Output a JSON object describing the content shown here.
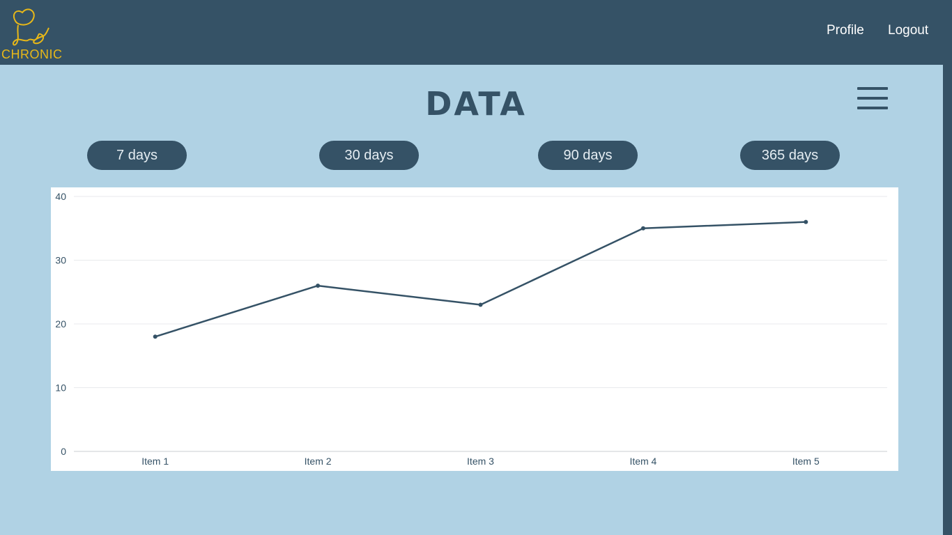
{
  "header": {
    "brand": "CHRONIC",
    "logo_icon": "elephant-line-icon",
    "nav": {
      "profile": "Profile",
      "logout": "Logout"
    }
  },
  "page": {
    "title": "DATA",
    "menu_icon": "hamburger-menu-icon"
  },
  "ranges": [
    {
      "label": "7 days"
    },
    {
      "label": "30 days"
    },
    {
      "label": "90 days"
    },
    {
      "label": "365 days"
    }
  ],
  "colors": {
    "header_bg": "#355266",
    "page_bg": "#b0d2e4",
    "accent": "#e8b818",
    "line": "#355266"
  },
  "chart_data": {
    "type": "line",
    "categories": [
      "Item 1",
      "Item 2",
      "Item 3",
      "Item 4",
      "Item 5"
    ],
    "values": [
      18,
      26,
      23,
      35,
      36
    ],
    "ylim": [
      0,
      40
    ],
    "yticks": [
      0,
      10,
      20,
      30,
      40
    ],
    "grid": true,
    "title": "",
    "xlabel": "",
    "ylabel": ""
  }
}
